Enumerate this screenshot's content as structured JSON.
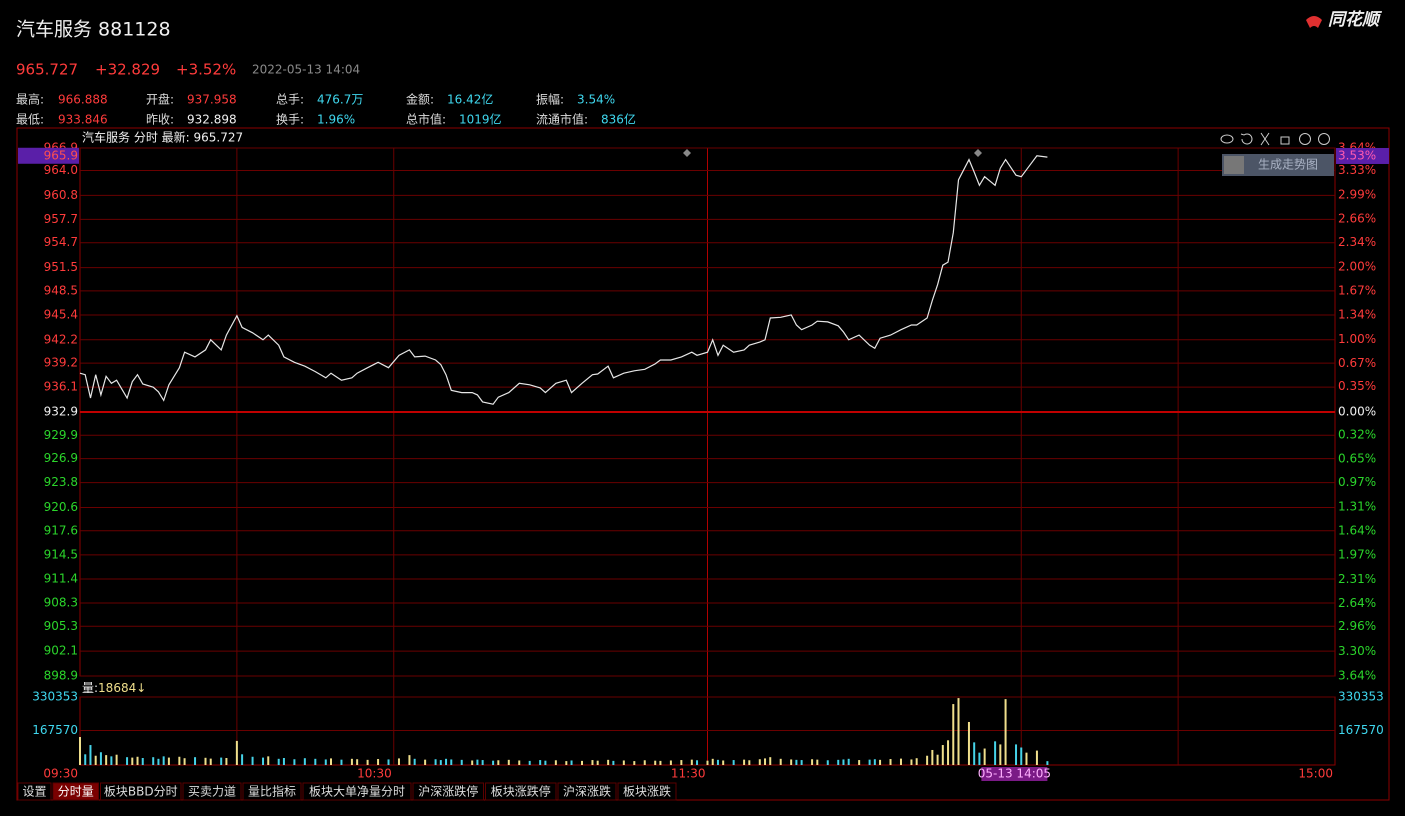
{
  "header": {
    "title": "汽车服务 881128",
    "logo": "同花顺",
    "price": "965.727",
    "change": "+32.829",
    "change_pct": "+3.52%",
    "time": "2022-05-13 14:04",
    "stats": [
      [
        "最高:",
        "966.888",
        "开盘:",
        "937.958",
        "总手:",
        "476.7万",
        "金额:",
        "16.42亿",
        "振幅:",
        "3.54%"
      ],
      [
        "最低:",
        "933.846",
        "昨收:",
        "932.898",
        "换手:",
        "1.96%",
        "总市值:",
        "1019亿",
        "流通市值:",
        "836亿"
      ]
    ]
  },
  "chart_data": {
    "type": "line",
    "caption": "汽车服务 分时 最新: 965.727",
    "button": "生成走势图",
    "xlim": [
      0,
      240
    ],
    "xticks": [
      {
        "value": 0,
        "label": "09:30"
      },
      {
        "value": 60,
        "label": "10:30"
      },
      {
        "value": 120,
        "label": "11:30"
      },
      {
        "value": 240,
        "label": "15:00"
      }
    ],
    "xgrid": [
      30,
      60,
      120,
      180,
      210
    ],
    "cursor": {
      "value": 185,
      "label": "05-13 14:05"
    },
    "ylim": [
      898.9,
      966.9
    ],
    "yticks": [
      966.9,
      {
        "value": 964,
        "label": "964.0"
      },
      960.8,
      957.7,
      954.7,
      951.5,
      948.5,
      945.4,
      942.2,
      939.2,
      936.1,
      932.9,
      929.9,
      926.9,
      923.8,
      920.6,
      917.6,
      914.5,
      911.4,
      908.3,
      905.3,
      902.1,
      898.9
    ],
    "y2lim": [
      -3.64,
      3.64
    ],
    "y2ticks": [
      {
        "value": 3.64,
        "label": "3.64%"
      },
      {
        "value": 3.33,
        "label": "3.33%"
      },
      {
        "value": 2.99,
        "label": "2.99%"
      },
      {
        "value": 2.66,
        "label": "2.66%"
      },
      {
        "value": 2.34,
        "label": "2.34%"
      },
      {
        "value": 2.0,
        "label": "2.00%"
      },
      {
        "value": 1.67,
        "label": "1.67%"
      },
      {
        "value": 1.34,
        "label": "1.34%"
      },
      {
        "value": 1.0,
        "label": "1.00%"
      },
      {
        "value": 0.67,
        "label": "0.67%"
      },
      {
        "value": 0.35,
        "label": "0.35%"
      },
      {
        "value": 0,
        "label": "0.00%"
      },
      {
        "value": -0.32,
        "label": "0.32%"
      },
      {
        "value": -0.65,
        "label": "0.65%"
      },
      {
        "value": -0.97,
        "label": "0.97%"
      },
      {
        "value": -1.31,
        "label": "1.31%"
      },
      {
        "value": -1.64,
        "label": "1.64%"
      },
      {
        "value": -1.97,
        "label": "1.97%"
      },
      {
        "value": -2.31,
        "label": "2.31%"
      },
      {
        "value": -2.64,
        "label": "2.64%"
      },
      {
        "value": -2.96,
        "label": "2.96%"
      },
      {
        "value": -3.3,
        "label": "3.30%"
      },
      {
        "value": -3.64,
        "label": "3.64%"
      }
    ],
    "left_marker": 965.9,
    "right_marker": {
      "value": 3.53,
      "label": "3.53%"
    },
    "grid": true,
    "x": [
      0,
      1,
      2,
      3,
      4,
      5,
      6,
      7,
      9,
      10,
      11,
      12,
      14,
      15,
      16,
      17,
      19,
      20,
      22,
      24,
      25,
      27,
      28,
      30,
      31,
      33,
      35,
      36,
      38,
      39,
      41,
      43,
      45,
      47,
      48,
      50,
      52,
      53,
      55,
      57,
      59,
      61,
      63,
      64,
      66,
      68,
      69,
      70,
      71,
      73,
      75,
      76,
      77,
      79,
      80,
      82,
      84,
      86,
      88,
      89,
      91,
      93,
      94,
      96,
      98,
      99,
      101,
      102,
      104,
      106,
      108,
      110,
      111,
      113,
      115,
      117,
      118,
      120,
      121,
      122,
      123,
      125,
      127,
      128,
      130,
      131,
      132,
      134,
      136,
      137,
      138,
      140,
      141,
      143,
      145,
      146,
      147,
      149,
      151,
      152,
      153,
      155,
      157,
      159,
      160,
      162,
      163,
      164,
      165,
      166,
      167,
      168,
      170,
      171,
      172,
      173,
      175,
      176,
      177,
      179,
      180,
      181,
      183,
      185
    ],
    "series": [
      {
        "color": "#e6e6e6",
        "values": [
          937.9,
          937.7,
          934.7,
          937.7,
          935.1,
          937.5,
          936.6,
          937.0,
          934.7,
          936.8,
          937.7,
          936.5,
          936.1,
          935.5,
          934.4,
          936.4,
          938.6,
          940.6,
          940.0,
          940.9,
          942.2,
          940.9,
          942.8,
          945.3,
          943.8,
          943.1,
          942.2,
          942.8,
          941.5,
          940.0,
          939.3,
          938.8,
          938.1,
          937.3,
          937.9,
          937.0,
          937.3,
          937.9,
          938.6,
          939.3,
          938.6,
          940.2,
          940.9,
          940.0,
          940.1,
          939.6,
          939.0,
          937.7,
          935.7,
          935.4,
          935.4,
          935.1,
          934.2,
          933.9,
          934.8,
          935.4,
          936.6,
          936.4,
          936.0,
          935.4,
          936.6,
          937.0,
          935.4,
          936.6,
          937.7,
          937.8,
          938.8,
          937.3,
          937.9,
          938.2,
          938.4,
          939.1,
          939.6,
          939.6,
          940.0,
          940.6,
          940.2,
          940.6,
          942.2,
          940.2,
          941.5,
          940.6,
          940.9,
          941.5,
          941.9,
          942.2,
          945.0,
          945.1,
          945.4,
          944.1,
          943.5,
          944.1,
          944.6,
          944.5,
          944.0,
          943.2,
          942.2,
          942.8,
          941.5,
          941.1,
          942.4,
          942.8,
          943.5,
          944.1,
          944.1,
          945.0,
          947.3,
          949.3,
          951.8,
          952.2,
          956.0,
          962.8,
          965.4,
          963.8,
          962.1,
          963.2,
          962.1,
          964.3,
          965.4,
          963.4,
          963.2,
          964.1,
          965.9,
          965.727
        ]
      }
    ],
    "volume": {
      "caption": "量:",
      "last": 18684,
      "arrow": "↓",
      "ylim": [
        0,
        330353
      ],
      "yticks": [
        330353,
        167570
      ],
      "up_color": "#f0df8c",
      "down_color": "#46d3e8",
      "values": [
        136000,
        52000,
        97000,
        45000,
        62000,
        48000,
        42000,
        50000,
        38000,
        36000,
        40000,
        34000,
        38000,
        30000,
        42000,
        36000,
        40000,
        33000,
        38000,
        35000,
        31000,
        36000,
        34000,
        117000,
        52000,
        40000,
        36000,
        42000,
        30000,
        34000,
        28000,
        33000,
        30000,
        27000,
        32000,
        26000,
        30000,
        28000,
        25000,
        29000,
        27000,
        32000,
        48000,
        30000,
        26000,
        28000,
        24000,
        30000,
        27000,
        25000,
        22000,
        26000,
        24000,
        21000,
        23000,
        25000,
        22000,
        20000,
        24000,
        21000,
        23000,
        19000,
        22000,
        20000,
        24000,
        21000,
        25000,
        20000,
        22000,
        19000,
        23000,
        21000,
        20000,
        22000,
        24000,
        26000,
        23000,
        21000,
        30000,
        25000,
        22000,
        24000,
        26000,
        23000,
        28000,
        32000,
        38000,
        30000,
        27000,
        25000,
        24000,
        28000,
        26000,
        23000,
        25000,
        27000,
        30000,
        24000,
        26000,
        28000,
        25000,
        29000,
        31000,
        27000,
        33000,
        45000,
        73000,
        50000,
        97000,
        120000,
        296000,
        325000,
        209000,
        110000,
        60000,
        80000,
        115000,
        100000,
        320000,
        100000,
        85000,
        60000,
        70000,
        18684
      ]
    }
  },
  "toolbar": [
    "设置",
    "分时量",
    "板块BBD分时",
    "买卖力道",
    "量比指标",
    "板块大单净量分时",
    "沪深涨跌停",
    "板块涨跌停",
    "沪深涨跌",
    "板块涨跌"
  ]
}
